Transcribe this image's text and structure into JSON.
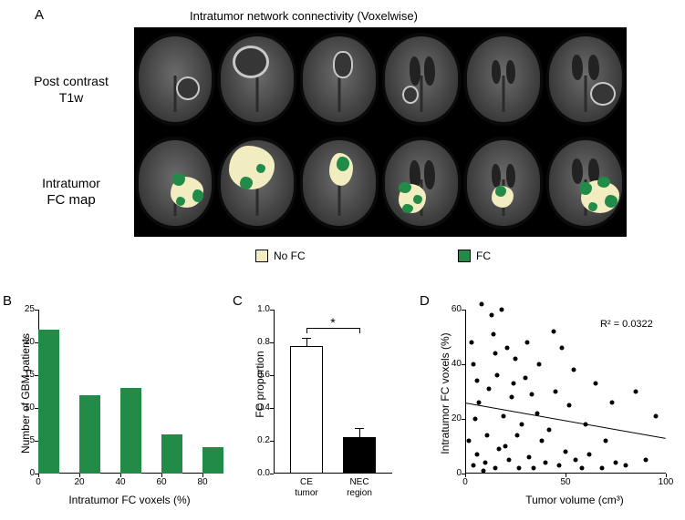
{
  "panelA": {
    "label": "A",
    "title": "Intratumor network connectivity (Voxelwise)",
    "row1_label_line1": "Post contrast",
    "row1_label_line2": "T1w",
    "row2_label_line1": "Intratumor",
    "row2_label_line2": "FC map",
    "legend_nofc": "No FC",
    "legend_fc": "FC",
    "color_nofc": "#f1edc0",
    "color_fc": "#228b48",
    "brains_per_row": 6
  },
  "panelB": {
    "label": "B",
    "xlabel": "Intratumor FC voxels (%)",
    "ylabel": "Number of GBM patients",
    "bars": [
      22,
      12,
      13,
      6,
      4
    ],
    "bin_edges": [
      0,
      20,
      40,
      60,
      80
    ],
    "ylim": [
      0,
      25
    ],
    "ytick_step": 5,
    "bar_color": "#228b48",
    "background": "#ffffff"
  },
  "panelC": {
    "label": "C",
    "ylabel": "FC proportion",
    "xlabels": [
      "CE\ntumor",
      "NEC\nregion"
    ],
    "values": [
      0.78,
      0.22
    ],
    "errors": [
      0.04,
      0.05
    ],
    "ylim": [
      0,
      1.0
    ],
    "ytick_step": 0.2,
    "bar_colors": [
      "#ffffff",
      "#000000"
    ],
    "sig_marker": "*"
  },
  "panelD": {
    "label": "D",
    "xlabel": "Tumor volume (cm³)",
    "ylabel": "Intratumor FC voxels (%)",
    "xlim": [
      0,
      100
    ],
    "xtick_step": 50,
    "ylim": [
      0,
      60
    ],
    "ytick_step": 20,
    "r2_text": "R² = 0.0322",
    "trend_start": [
      0,
      26
    ],
    "trend_end": [
      100,
      13
    ],
    "point_color": "#000000",
    "points": [
      [
        3,
        48
      ],
      [
        8,
        62
      ],
      [
        4,
        3
      ],
      [
        6,
        7
      ],
      [
        5,
        20
      ],
      [
        9,
        1
      ],
      [
        12,
        31
      ],
      [
        10,
        4
      ],
      [
        13,
        58
      ],
      [
        15,
        2
      ],
      [
        16,
        36
      ],
      [
        18,
        60
      ],
      [
        20,
        10
      ],
      [
        22,
        5
      ],
      [
        23,
        28
      ],
      [
        25,
        42
      ],
      [
        27,
        2
      ],
      [
        28,
        18
      ],
      [
        30,
        35
      ],
      [
        32,
        6
      ],
      [
        34,
        2
      ],
      [
        36,
        22
      ],
      [
        37,
        40
      ],
      [
        40,
        4
      ],
      [
        42,
        16
      ],
      [
        45,
        30
      ],
      [
        47,
        3
      ],
      [
        50,
        8
      ],
      [
        52,
        25
      ],
      [
        55,
        5
      ],
      [
        58,
        2
      ],
      [
        60,
        18
      ],
      [
        62,
        7
      ],
      [
        65,
        33
      ],
      [
        68,
        2
      ],
      [
        70,
        12
      ],
      [
        73,
        26
      ],
      [
        75,
        4
      ],
      [
        80,
        3
      ],
      [
        85,
        30
      ],
      [
        90,
        5
      ],
      [
        95,
        21
      ],
      [
        48,
        46
      ],
      [
        15,
        44
      ],
      [
        11,
        14
      ],
      [
        6,
        34
      ],
      [
        38,
        12
      ],
      [
        44,
        52
      ],
      [
        7,
        26
      ],
      [
        19,
        21
      ],
      [
        2,
        12
      ],
      [
        4,
        40
      ],
      [
        31,
        48
      ],
      [
        54,
        38
      ],
      [
        26,
        14
      ],
      [
        33,
        29
      ],
      [
        14,
        51
      ],
      [
        21,
        46
      ],
      [
        24,
        33
      ],
      [
        17,
        9
      ]
    ]
  }
}
